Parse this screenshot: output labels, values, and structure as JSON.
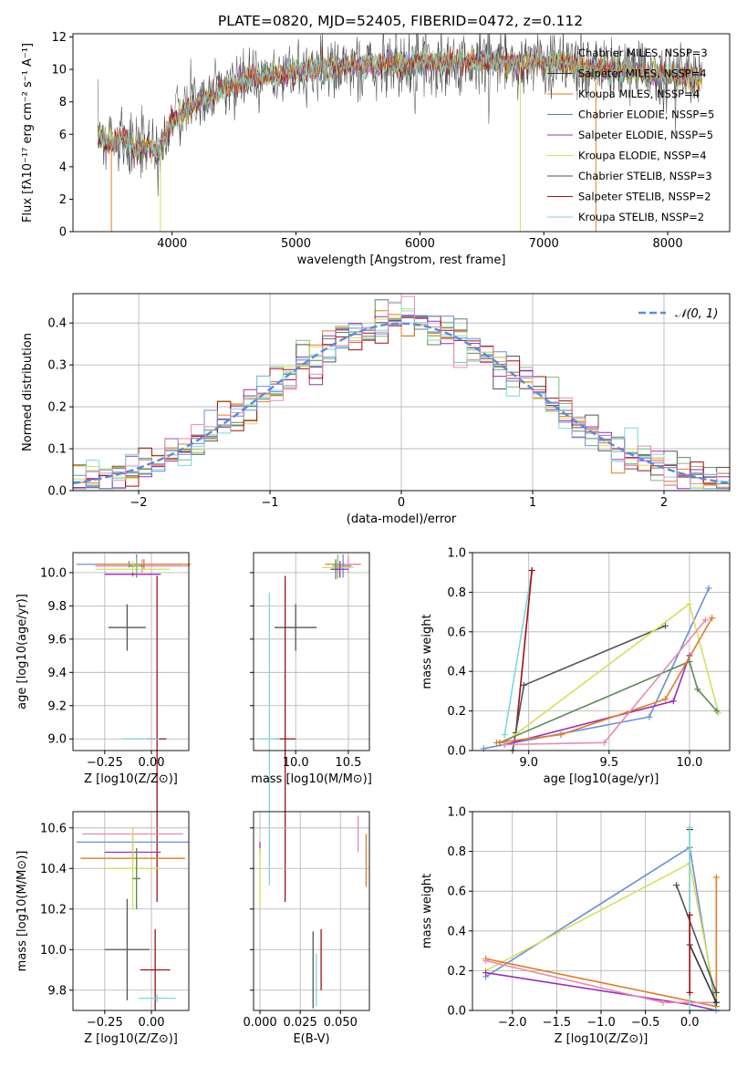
{
  "figure_title": "PLATE=0820, MJD=52405, FIBERID=0472, z=0.112",
  "colors": [
    "#7fbf7f",
    "#333333",
    "#e07b2a",
    "#5a8a5a",
    "#9b30b0",
    "#d4e05a",
    "#555555",
    "#a01010",
    "#7fd6d9",
    "#6a8fd9",
    "#e88ab5"
  ],
  "chart_data": [
    {
      "type": "line",
      "title": "PLATE=0820, MJD=52405, FIBERID=0472, z=0.112",
      "xlabel": "wavelength [Angstrom, rest frame]",
      "ylabel": "Flux [fλ10⁻¹⁷ erg cm⁻² s⁻¹ A⁻¹]",
      "xlim": [
        3200,
        8500
      ],
      "ylim": [
        0,
        12.2
      ],
      "xticks": [
        4000,
        5000,
        6000,
        7000,
        8000
      ],
      "yticks": [
        0,
        2,
        4,
        6,
        8,
        10,
        12
      ],
      "legend_position": "right",
      "continuum_x": [
        3400,
        3500,
        3600,
        3700,
        3800,
        3900,
        4000,
        4100,
        4200,
        4300,
        4400,
        4600,
        4800,
        5000,
        5200,
        5500,
        6000,
        6500,
        7000,
        7500,
        8000,
        8280
      ],
      "continuum_y": [
        5.9,
        5.5,
        5.9,
        5.0,
        5.3,
        5.0,
        6.8,
        7.4,
        8.0,
        8.2,
        8.8,
        9.3,
        9.6,
        9.9,
        10.1,
        10.2,
        10.4,
        10.5,
        10.4,
        10.0,
        9.7,
        9.5
      ],
      "series": [
        {
          "name": "Chabrier MILES, NSSP=3",
          "color": "#7fbf7f"
        },
        {
          "name": "Salpeter MILES, NSSP=4",
          "color": "#333333"
        },
        {
          "name": "Kroupa MILES, NSSP=4",
          "color": "#e07b2a"
        },
        {
          "name": "Chabrier ELODIE, NSSP=5",
          "color": "#5a8a5a"
        },
        {
          "name": "Salpeter ELODIE, NSSP=5",
          "color": "#9b30b0"
        },
        {
          "name": "Kroupa ELODIE, NSSP=4",
          "color": "#d4e05a"
        },
        {
          "name": "Chabrier STELIB, NSSP=3",
          "color": "#555555"
        },
        {
          "name": "Salpeter STELIB, NSSP=2",
          "color": "#a01010"
        },
        {
          "name": "Kroupa STELIB, NSSP=2",
          "color": "#7fd6d9"
        }
      ]
    },
    {
      "type": "line",
      "xlabel": "(data-model)/error",
      "ylabel": "Normed distribution",
      "xlim": [
        -2.5,
        2.5
      ],
      "ylim": [
        0,
        0.47
      ],
      "xticks": [
        -2,
        -1,
        0,
        1,
        2
      ],
      "yticks": [
        0.0,
        0.1,
        0.2,
        0.3,
        0.4
      ],
      "grid": true,
      "legend_position": "top-right",
      "legend": "𝒩(0, 1)",
      "gaussian_color": "#5b8ad9",
      "bin_width": 0.1
    },
    {
      "type": "scatter",
      "xlabel": "Z [log10(Z/Z⊙)]",
      "ylabel": "age  [log10(age/yr)]",
      "xlim": [
        -0.42,
        0.2
      ],
      "ylim": [
        8.93,
        10.12
      ],
      "xticks": [
        -0.25,
        0.0
      ],
      "yticks": [
        9.0,
        9.2,
        9.4,
        9.6,
        9.8,
        10.0
      ],
      "grid": true,
      "errorbars": [
        {
          "x": -0.12,
          "y": 10.05,
          "xerr": 0.28,
          "yerr": 0.02,
          "color": "#6a8fd9"
        },
        {
          "x": -0.05,
          "y": 10.04,
          "xerr": 0.25,
          "yerr": 0.04,
          "color": "#e88ab5"
        },
        {
          "x": -0.04,
          "y": 10.05,
          "xerr": 0.25,
          "yerr": 0.03,
          "color": "#e07b2a"
        },
        {
          "x": -0.1,
          "y": 10.02,
          "xerr": 0.2,
          "yerr": 0.05,
          "color": "#d4e05a"
        },
        {
          "x": -0.08,
          "y": 10.04,
          "xerr": 0.04,
          "yerr": 0.07,
          "color": "#5a8a5a"
        },
        {
          "x": -0.08,
          "y": 10.04,
          "xerr": 0.02,
          "yerr": 0.06,
          "color": "#7fbf7f"
        },
        {
          "x": -0.1,
          "y": 9.99,
          "xerr": 0.15,
          "yerr": 0.01,
          "color": "#9b30b0"
        },
        {
          "x": -0.13,
          "y": 9.67,
          "xerr": 0.1,
          "yerr": 0.14,
          "color": "#555555"
        },
        {
          "x": 0.03,
          "y": 9.0,
          "xerr": 0.05,
          "yerr": 0.98,
          "color": "#a01010"
        },
        {
          "x": -0.06,
          "y": 9.0,
          "xerr": 0.1,
          "yerr": 0.0,
          "color": "#7fd6d9"
        }
      ]
    },
    {
      "type": "scatter",
      "xlabel": "mass [log10(M/M⊙)]",
      "xlim": [
        9.6,
        10.7
      ],
      "ylim": [
        8.93,
        10.12
      ],
      "xticks": [
        10.0,
        10.5
      ],
      "yticks": [
        9.0,
        9.2,
        9.4,
        9.6,
        9.8,
        10.0
      ],
      "grid": true,
      "errorbars": [
        {
          "x": 10.45,
          "y": 10.05,
          "xerr": 0.17,
          "yerr": 0.02,
          "color": "#e07b2a"
        },
        {
          "x": 10.5,
          "y": 10.05,
          "xerr": 0.1,
          "yerr": 0.05,
          "color": "#e88ab5"
        },
        {
          "x": 10.45,
          "y": 10.04,
          "xerr": 0.08,
          "yerr": 0.07,
          "color": "#6a8fd9"
        },
        {
          "x": 10.4,
          "y": 10.03,
          "xerr": 0.15,
          "yerr": 0.07,
          "color": "#d4e05a"
        },
        {
          "x": 10.4,
          "y": 10.04,
          "xerr": 0.05,
          "yerr": 0.07,
          "color": "#7fbf7f"
        },
        {
          "x": 10.38,
          "y": 10.02,
          "xerr": 0.05,
          "yerr": 0.06,
          "color": "#5a8a5a"
        },
        {
          "x": 10.42,
          "y": 10.02,
          "xerr": 0.08,
          "yerr": 0.05,
          "color": "#9b30b0"
        },
        {
          "x": 10.0,
          "y": 9.67,
          "xerr": 0.2,
          "yerr": 0.14,
          "color": "#555555"
        },
        {
          "x": 9.9,
          "y": 9.0,
          "xerr": 0.1,
          "yerr": 0.98,
          "color": "#a01010"
        },
        {
          "x": 9.75,
          "y": 9.0,
          "xerr": 0.1,
          "yerr": 0.88,
          "color": "#7fd6d9"
        }
      ]
    },
    {
      "type": "line",
      "xlabel": "age  [log10(age/yr)]",
      "ylabel": "mass weight",
      "xlim": [
        8.65,
        10.25
      ],
      "ylim": [
        0,
        1.0
      ],
      "xticks": [
        9.0,
        9.5,
        10.0
      ],
      "yticks": [
        0.0,
        0.2,
        0.4,
        0.6,
        0.8,
        1.0
      ],
      "grid": true,
      "series": [
        {
          "color": "#7fd6d9",
          "x": [
            8.85,
            9.02
          ],
          "y": [
            0.08,
            0.91
          ]
        },
        {
          "color": "#a01010",
          "x": [
            8.92,
            9.02
          ],
          "y": [
            0.09,
            0.91
          ]
        },
        {
          "color": "#555555",
          "x": [
            8.9,
            8.97,
            9.85
          ],
          "y": [
            0.0,
            0.33,
            0.63
          ]
        },
        {
          "color": "#6a8fd9",
          "x": [
            8.72,
            9.75,
            10.12
          ],
          "y": [
            0.01,
            0.17,
            0.82
          ]
        },
        {
          "color": "#d4e05a",
          "x": [
            8.85,
            10.0,
            10.18
          ],
          "y": [
            0.04,
            0.74,
            0.19
          ]
        },
        {
          "color": "#5a8a5a",
          "x": [
            8.82,
            10.0,
            10.05,
            10.17
          ],
          "y": [
            0.04,
            0.45,
            0.31,
            0.2
          ]
        },
        {
          "color": "#9b30b0",
          "x": [
            8.85,
            9.9,
            10.0
          ],
          "y": [
            0.03,
            0.25,
            0.48
          ]
        },
        {
          "color": "#e07b2a",
          "x": [
            8.8,
            9.2,
            9.85,
            10.14
          ],
          "y": [
            0.04,
            0.08,
            0.26,
            0.67
          ]
        },
        {
          "color": "#e88ab5",
          "x": [
            8.85,
            9.47,
            10.1
          ],
          "y": [
            0.03,
            0.04,
            0.66
          ]
        }
      ]
    },
    {
      "type": "scatter",
      "xlabel": "Z [log10(Z/Z⊙)]",
      "ylabel": "mass [log10(M/M⊙)]",
      "xlim": [
        -0.42,
        0.2
      ],
      "ylim": [
        9.7,
        10.68
      ],
      "xticks": [
        -0.25,
        0.0
      ],
      "yticks": [
        9.8,
        10.0,
        10.2,
        10.4,
        10.6
      ],
      "grid": true,
      "errorbars": [
        {
          "x": -0.1,
          "y": 10.57,
          "xerr": 0.27,
          "yerr": 0.03,
          "color": "#e88ab5"
        },
        {
          "x": -0.1,
          "y": 10.53,
          "xerr": 0.3,
          "yerr": 0.02,
          "color": "#6a8fd9"
        },
        {
          "x": -0.1,
          "y": 10.45,
          "xerr": 0.28,
          "yerr": 0.03,
          "color": "#e07b2a"
        },
        {
          "x": -0.1,
          "y": 10.48,
          "xerr": 0.15,
          "yerr": 0.03,
          "color": "#9b30b0"
        },
        {
          "x": -0.1,
          "y": 10.4,
          "xerr": 0.15,
          "yerr": 0.2,
          "color": "#d4e05a"
        },
        {
          "x": -0.08,
          "y": 10.35,
          "xerr": 0.02,
          "yerr": 0.15,
          "color": "#7fbf7f"
        },
        {
          "x": -0.08,
          "y": 10.35,
          "xerr": 0.02,
          "yerr": 0.15,
          "color": "#5a8a5a"
        },
        {
          "x": -0.13,
          "y": 10.0,
          "xerr": 0.12,
          "yerr": 0.25,
          "color": "#555555"
        },
        {
          "x": 0.02,
          "y": 9.9,
          "xerr": 0.08,
          "yerr": 0.2,
          "color": "#a01010"
        },
        {
          "x": 0.03,
          "y": 9.76,
          "xerr": 0.1,
          "yerr": 0.02,
          "color": "#7fd6d9"
        }
      ]
    },
    {
      "type": "scatter",
      "xlabel": "E(B-V)",
      "xlim": [
        -0.004,
        0.068
      ],
      "ylim": [
        9.7,
        10.68
      ],
      "xticks": [
        0.0,
        0.025,
        0.05
      ],
      "tick_labels": [
        "0.000",
        "0.025",
        "0.050"
      ],
      "yticks": [
        9.8,
        10.0,
        10.2,
        10.4,
        10.6
      ],
      "grid": true,
      "errorbars": [
        {
          "x": 0.0,
          "y": 10.5,
          "yerr": 0.03,
          "color": "#9b30b0"
        },
        {
          "x": 0.0,
          "y": 10.35,
          "yerr": 0.15,
          "color": "#d4e05a"
        },
        {
          "x": 0.061,
          "y": 10.57,
          "yerr": 0.09,
          "color": "#e88ab5"
        },
        {
          "x": 0.066,
          "y": 10.44,
          "yerr": 0.13,
          "color": "#e07b2a"
        },
        {
          "x": 0.033,
          "y": 9.9,
          "yerr": 0.19,
          "color": "#555555"
        },
        {
          "x": 0.038,
          "y": 9.95,
          "yerr": 0.15,
          "color": "#a01010"
        },
        {
          "x": 0.035,
          "y": 9.85,
          "yerr": 0.13,
          "color": "#7fd6d9"
        }
      ]
    },
    {
      "type": "line",
      "xlabel": "Z [log10(Z/Z⊙)]",
      "ylabel": "mass weight",
      "xlim": [
        -2.45,
        0.45
      ],
      "ylim": [
        0,
        1.0
      ],
      "xticks": [
        -2.0,
        -1.5,
        -1.0,
        -0.5,
        0.0
      ],
      "yticks": [
        0.0,
        0.2,
        0.4,
        0.6,
        0.8,
        1.0
      ],
      "grid": true,
      "series": [
        {
          "color": "#6a8fd9",
          "x": [
            -2.3,
            0.0,
            0.3
          ],
          "y": [
            0.17,
            0.82,
            0.0
          ]
        },
        {
          "color": "#d4e05a",
          "x": [
            -2.3,
            0.0,
            0.3
          ],
          "y": [
            0.2,
            0.74,
            0.04
          ]
        },
        {
          "color": "#9b30b0",
          "x": [
            -2.3,
            0.0,
            0.3
          ],
          "y": [
            0.19,
            0.03,
            0.0
          ]
        },
        {
          "color": "#e07b2a",
          "x": [
            -2.3,
            0.3,
            0.3
          ],
          "y": [
            0.26,
            0.02,
            0.67
          ]
        },
        {
          "color": "#e88ab5",
          "x": [
            -2.3,
            -0.3,
            0.3
          ],
          "y": [
            0.25,
            0.04,
            0.04
          ]
        },
        {
          "color": "#555555",
          "x": [
            -0.15,
            0.3
          ],
          "y": [
            0.63,
            0.09
          ]
        },
        {
          "color": "#333333",
          "x": [
            0.0,
            0.0,
            0.3
          ],
          "y": [
            0.91,
            0.33,
            0.04
          ]
        },
        {
          "color": "#7fd6d9",
          "x": [
            0.0,
            0.0,
            0.3
          ],
          "y": [
            0.92,
            0.0,
            0.0
          ]
        },
        {
          "color": "#a01010",
          "x": [
            0.0,
            0.0
          ],
          "y": [
            0.09,
            0.48
          ]
        }
      ]
    }
  ]
}
